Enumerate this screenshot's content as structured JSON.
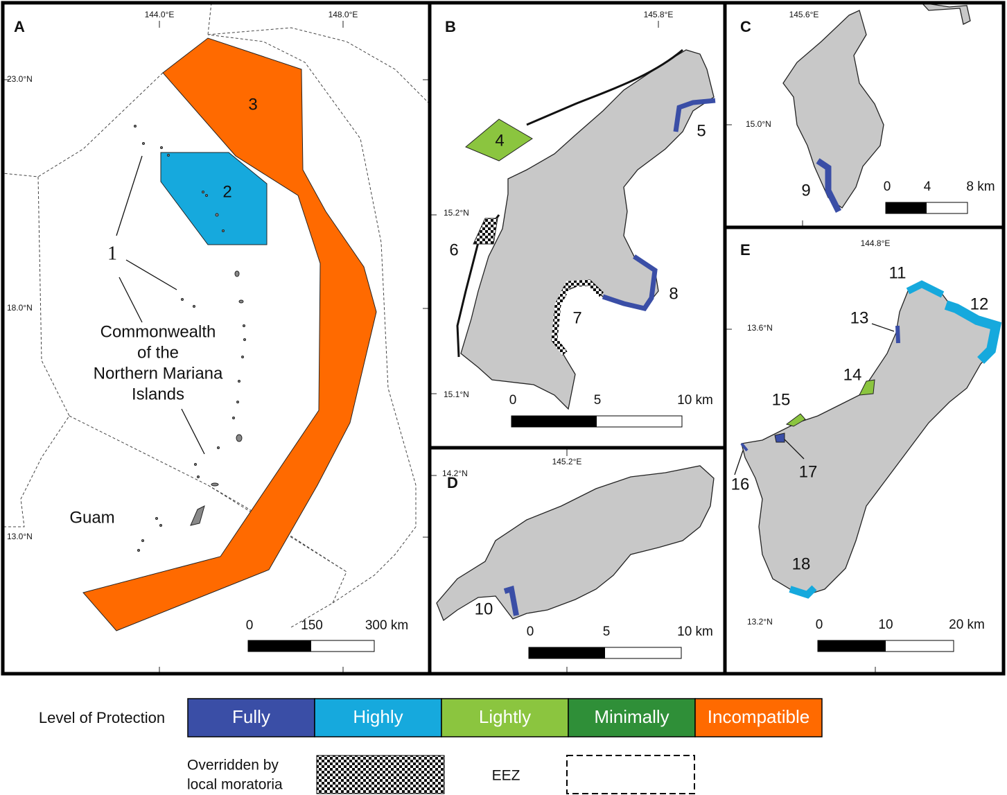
{
  "panels": [
    {
      "label": "A",
      "longitudes": [
        "144.0°E",
        "148.0°E"
      ],
      "latitudes": [
        "23.0°N",
        "18.0°N",
        "13.0°N"
      ],
      "sites": [
        "1",
        "2",
        "3"
      ],
      "region": [
        "Commonwealth",
        "of the",
        "Northern Mariana",
        "Islands"
      ],
      "place": "Guam",
      "scale": [
        "0",
        "150",
        "300 km"
      ]
    },
    {
      "label": "B",
      "longitudes": [
        "145.8°E"
      ],
      "latitudes": [
        "15.2°N",
        "15.1°N"
      ],
      "sites": [
        "4",
        "5",
        "6",
        "7",
        "8"
      ],
      "scale": [
        "0",
        "5",
        "10 km"
      ]
    },
    {
      "label": "C",
      "longitudes": [
        "145.6°E"
      ],
      "latitudes": [
        "15.0°N"
      ],
      "sites": [
        "9"
      ],
      "scale": [
        "0",
        "4",
        "8 km"
      ]
    },
    {
      "label": "D",
      "longitudes": [
        "145.2°E"
      ],
      "latitudes": [
        "14.2°N"
      ],
      "sites": [
        "10"
      ],
      "scale": [
        "0",
        "5",
        "10 km"
      ]
    },
    {
      "label": "E",
      "longitudes": [
        "144.8°E"
      ],
      "latitudes": [
        "13.6°N",
        "13.2°N"
      ],
      "sites": [
        "11",
        "12",
        "13",
        "14",
        "15",
        "16",
        "17",
        "18"
      ],
      "scale": [
        "0",
        "10",
        "20 km"
      ]
    }
  ],
  "legend": {
    "title": "Level of Protection",
    "levels": [
      {
        "name": "Fully",
        "color": "#3a4ea6"
      },
      {
        "name": "Highly",
        "color": "#16a9dd"
      },
      {
        "name": "Lightly",
        "color": "#8bc53f"
      },
      {
        "name": "Minimally",
        "color": "#2f8f38"
      },
      {
        "name": "Incompatible",
        "color": "#ff6a00"
      }
    ],
    "moratoria": [
      "Overridden by",
      "local moratoria"
    ],
    "eez": "EEZ"
  }
}
